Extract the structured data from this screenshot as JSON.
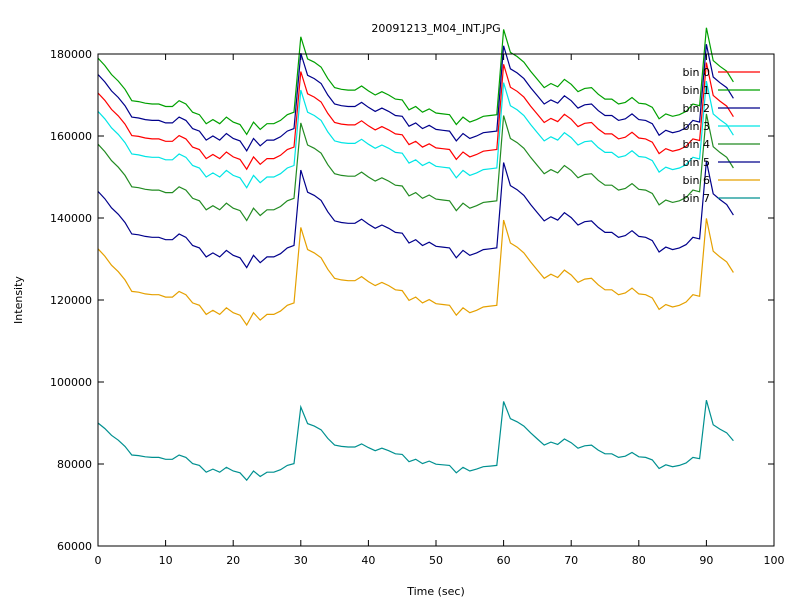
{
  "chart_data": {
    "type": "line",
    "title": "20091213_M04_INT.JPG",
    "xlabel": "Time (sec)",
    "ylabel": "Intensity",
    "xlim": [
      0,
      100
    ],
    "ylim": [
      60000,
      180000
    ],
    "xticks": [
      0,
      10,
      20,
      30,
      40,
      50,
      60,
      70,
      80,
      90,
      100
    ],
    "yticks": [
      60000,
      80000,
      100000,
      120000,
      140000,
      160000,
      180000
    ],
    "grid": false,
    "legend_position": "top-right",
    "x": [
      0,
      1,
      2,
      3,
      4,
      5,
      6,
      7,
      8,
      9,
      10,
      11,
      12,
      13,
      14,
      15,
      16,
      17,
      18,
      19,
      20,
      21,
      22,
      23,
      24,
      25,
      26,
      27,
      28,
      29,
      30,
      31,
      32,
      33,
      34,
      35,
      36,
      37,
      38,
      39,
      40,
      41,
      42,
      43,
      44,
      45,
      46,
      47,
      48,
      49,
      50,
      51,
      52,
      53,
      54,
      55,
      56,
      57,
      58,
      59,
      60,
      61,
      62,
      63,
      64,
      65,
      66,
      67,
      68,
      69,
      70,
      71,
      72,
      73,
      74,
      75,
      76,
      77,
      78,
      79,
      80,
      81,
      82,
      83,
      84,
      85,
      86,
      87,
      88,
      89,
      90,
      91,
      92,
      93,
      94
    ],
    "base_series": [
      0,
      -0.9,
      -2.0,
      -2.8,
      -3.8,
      -5.2,
      -5.3,
      -5.5,
      -5.6,
      -5.6,
      -5.9,
      -5.9,
      -5.2,
      -5.6,
      -6.6,
      -6.9,
      -8.0,
      -7.5,
      -8.0,
      -7.2,
      -7.8,
      -8.1,
      -9.3,
      -7.8,
      -8.7,
      -8.0,
      -8.0,
      -7.6,
      -6.9,
      -6.6,
      2.6,
      -0.1,
      -0.5,
      -1.1,
      -2.5,
      -3.6,
      -3.8,
      -3.9,
      -3.9,
      -3.4,
      -4.0,
      -4.5,
      -4.1,
      -4.5,
      -5.0,
      -5.1,
      -6.3,
      -5.9,
      -6.6,
      -6.2,
      -6.7,
      -6.8,
      -6.9,
      -8.1,
      -7.2,
      -7.8,
      -7.5,
      -7.1,
      -7.0,
      -6.9,
      3.5,
      0.7,
      0.2,
      -0.5,
      -1.6,
      -2.6,
      -3.6,
      -3.1,
      -3.5,
      -2.6,
      -3.2,
      -4.1,
      -3.7,
      -3.6,
      -4.4,
      -5.0,
      -5.0,
      -5.6,
      -5.4,
      -4.8,
      -5.5,
      -5.6,
      -6.0,
      -7.4,
      -6.8,
      -7.1,
      -6.9,
      -6.5,
      -5.6,
      -5.8,
      3.7,
      -0.3,
      -1.0,
      -1.6,
      -2.9
    ],
    "series": [
      {
        "name": "bin 0",
        "color": "#ff0000",
        "start": 170500,
        "scale": 2000
      },
      {
        "name": "bin 1",
        "color": "#00a000",
        "start": 179000,
        "scale": 2000
      },
      {
        "name": "bin 2",
        "color": "#00008b",
        "start": 175000,
        "scale": 2000
      },
      {
        "name": "bin 3",
        "color": "#00e5e5",
        "start": 166000,
        "scale": 2000
      },
      {
        "name": "bin 4",
        "color": "#228b22",
        "start": 158000,
        "scale": 2000
      },
      {
        "name": "bin 5",
        "color": "#00008b",
        "start": 146500,
        "scale": 2000
      },
      {
        "name": "bin 6",
        "color": "#e5a000",
        "start": 132500,
        "scale": 2000
      },
      {
        "name": "bin 7",
        "color": "#009090",
        "start": 90000,
        "scale": 1500
      }
    ]
  }
}
